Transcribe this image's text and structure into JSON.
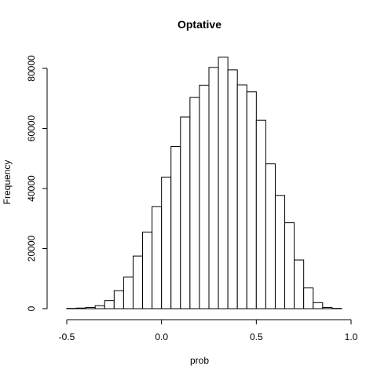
{
  "chart_data": {
    "type": "bar",
    "title": "Optative",
    "xlabel": "prob",
    "ylabel": "Frequency",
    "xlim": [
      -0.55,
      1.0
    ],
    "ylim": [
      0,
      86000
    ],
    "bin_width": 0.05,
    "bin_start": -0.5,
    "values": [
      100,
      200,
      400,
      1000,
      2700,
      6000,
      10500,
      17500,
      25500,
      34000,
      43800,
      54000,
      63800,
      70300,
      74400,
      80300,
      83700,
      79500,
      74500,
      72200,
      62700,
      48200,
      37700,
      28600,
      16200,
      6900,
      2000,
      400,
      100
    ],
    "x_ticks": [
      -0.5,
      0.0,
      0.5,
      1.0
    ],
    "x_tick_labels": [
      "-0.5",
      "0.0",
      "0.5",
      "1.0"
    ],
    "y_ticks": [
      0,
      20000,
      40000,
      60000,
      80000
    ],
    "y_tick_labels": [
      "0",
      "20000",
      "40000",
      "60000",
      "80000"
    ],
    "grid": false,
    "bar_fill": "#ffffff",
    "bar_stroke": "#000000"
  }
}
